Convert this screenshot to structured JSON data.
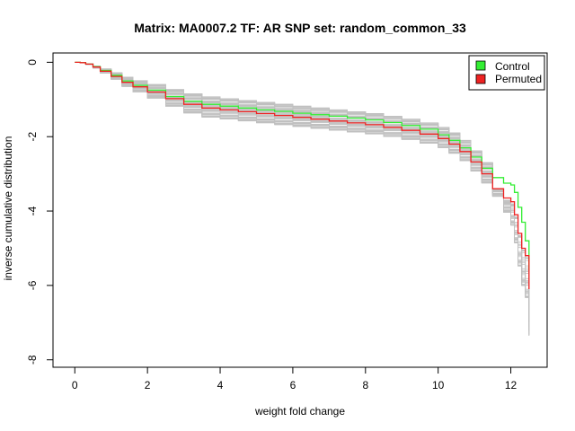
{
  "chart_data": {
    "type": "line",
    "title": "Matrix: MA0007.2 TF: AR SNP set: random_common_33",
    "xlabel": "weight fold change",
    "ylabel": "inverse cumulative distribution",
    "xlim": [
      -0.6,
      13.0
    ],
    "ylim": [
      -8.2,
      0.25
    ],
    "x_ticks": [
      0,
      2,
      4,
      6,
      8,
      10,
      12
    ],
    "y_ticks": [
      0,
      -2,
      -4,
      -6,
      -8
    ],
    "grid": false,
    "legend_position": "top-right",
    "legend": [
      {
        "label": "Control",
        "color": "#33ee33"
      },
      {
        "label": "Permuted",
        "color": "#ee2222"
      }
    ],
    "colors": {
      "control": "#33ee33",
      "permuted": "#ee2222",
      "background_series": "#c0c0c0"
    },
    "series": [
      {
        "name": "Control",
        "x": [
          0.0,
          0.15,
          0.3,
          0.5,
          0.7,
          1.0,
          1.3,
          1.6,
          2.0,
          2.5,
          3.0,
          3.5,
          4.0,
          4.5,
          5.0,
          5.5,
          6.0,
          6.5,
          7.0,
          7.5,
          8.0,
          8.5,
          9.0,
          9.5,
          10.0,
          10.3,
          10.6,
          10.9,
          11.2,
          11.5,
          11.8,
          12.0,
          12.1,
          12.2,
          12.3,
          12.4,
          12.5
        ],
        "y": [
          0.0,
          -0.01,
          -0.05,
          -0.12,
          -0.22,
          -0.35,
          -0.5,
          -0.62,
          -0.75,
          -0.92,
          -1.05,
          -1.13,
          -1.18,
          -1.23,
          -1.28,
          -1.32,
          -1.37,
          -1.41,
          -1.45,
          -1.5,
          -1.55,
          -1.62,
          -1.7,
          -1.8,
          -1.95,
          -2.1,
          -2.3,
          -2.55,
          -2.85,
          -3.1,
          -3.25,
          -3.3,
          -3.5,
          -3.9,
          -4.3,
          -4.8,
          -5.6
        ]
      },
      {
        "name": "Permuted",
        "x": [
          0.0,
          0.15,
          0.3,
          0.5,
          0.7,
          1.0,
          1.3,
          1.6,
          2.0,
          2.5,
          3.0,
          3.5,
          4.0,
          4.5,
          5.0,
          5.5,
          6.0,
          6.5,
          7.0,
          7.5,
          8.0,
          8.5,
          9.0,
          9.5,
          10.0,
          10.3,
          10.6,
          10.9,
          11.2,
          11.5,
          11.8,
          12.0,
          12.1,
          12.2,
          12.3,
          12.4,
          12.5
        ],
        "y": [
          0.0,
          -0.01,
          -0.05,
          -0.13,
          -0.24,
          -0.38,
          -0.54,
          -0.66,
          -0.8,
          -0.98,
          -1.13,
          -1.23,
          -1.28,
          -1.33,
          -1.38,
          -1.43,
          -1.48,
          -1.53,
          -1.58,
          -1.63,
          -1.68,
          -1.75,
          -1.83,
          -1.93,
          -2.05,
          -2.2,
          -2.4,
          -2.68,
          -3.0,
          -3.4,
          -3.65,
          -3.75,
          -4.1,
          -4.6,
          -5.0,
          -5.2,
          -6.1
        ]
      }
    ]
  }
}
